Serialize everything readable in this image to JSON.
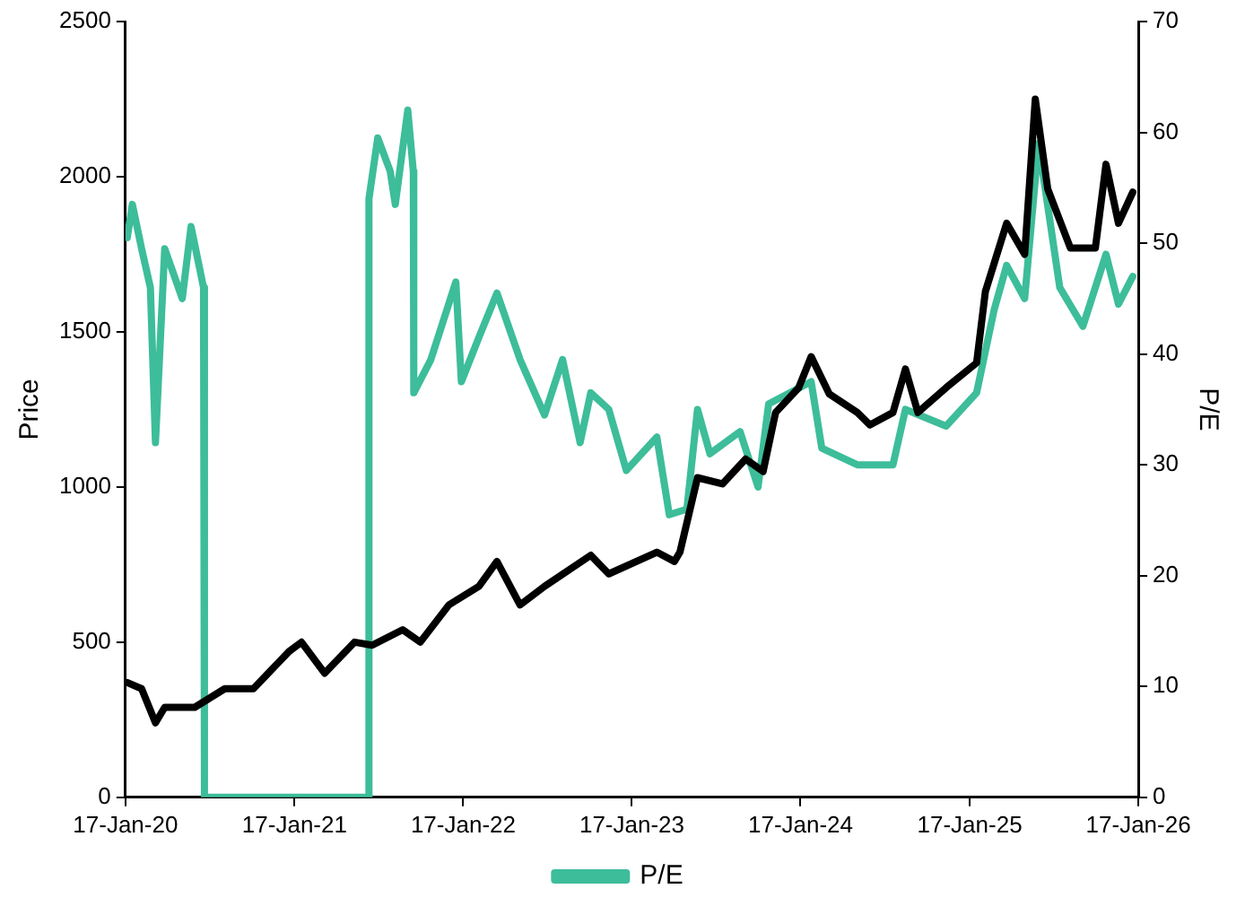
{
  "chart_data": {
    "type": "line",
    "ylabel": "Price",
    "y2label": "P/E",
    "xlim": [
      "2020-01-17",
      "2026-01-17"
    ],
    "xticks": [
      {
        "value": "2020-01-17",
        "label": "17-Jan-20"
      },
      {
        "value": "2021-01-17",
        "label": "17-Jan-21"
      },
      {
        "value": "2022-01-17",
        "label": "17-Jan-22"
      },
      {
        "value": "2023-01-17",
        "label": "17-Jan-23"
      },
      {
        "value": "2024-01-17",
        "label": "17-Jan-24"
      },
      {
        "value": "2025-01-17",
        "label": "17-Jan-25"
      },
      {
        "value": "2026-01-17",
        "label": "17-Jan-26"
      }
    ],
    "ylim": [
      0,
      2500
    ],
    "yticks": [
      0,
      500,
      1000,
      1500,
      2000,
      2500
    ],
    "y2lim": [
      0,
      70
    ],
    "y2ticks": [
      0,
      10,
      20,
      30,
      40,
      50,
      60,
      70
    ],
    "grid": false,
    "legend": "bottom",
    "marker": "none",
    "line_style": "solid",
    "series": [
      {
        "color": "#000000",
        "x": [
          "2020-01-21",
          "2020-02-21",
          "2020-03-22",
          "2020-04-11",
          "2020-06-15",
          "2020-08-19",
          "2020-10-20",
          "2021-01-05",
          "2021-02-01",
          "2021-03-23",
          "2021-05-27",
          "2021-07-04",
          "2021-09-08",
          "2021-10-16",
          "2021-12-17",
          "2022-02-20",
          "2022-03-31",
          "2022-05-20",
          "2022-07-12",
          "2022-10-20",
          "2022-11-28",
          "2023-03-12",
          "2023-04-19",
          "2023-05-01",
          "2023-06-08",
          "2023-08-01",
          "2023-09-20",
          "2023-10-28",
          "2023-11-24",
          "2024-01-13",
          "2024-02-09",
          "2024-03-19",
          "2024-05-19",
          "2024-06-15",
          "2024-08-04",
          "2024-08-31",
          "2024-09-27",
          "2024-11-27",
          "2025-02-01",
          "2025-02-20",
          "2025-04-07",
          "2025-05-16",
          "2025-06-08",
          "2025-07-05",
          "2025-08-23",
          "2025-10-16",
          "2025-11-08",
          "2025-12-05",
          "2026-01-05"
        ],
        "values": [
          370,
          350,
          240,
          290,
          290,
          350,
          350,
          470,
          500,
          400,
          500,
          490,
          540,
          500,
          620,
          680,
          760,
          620,
          680,
          780,
          720,
          790,
          760,
          790,
          1030,
          1010,
          1090,
          1050,
          1240,
          1320,
          1420,
          1300,
          1240,
          1200,
          1240,
          1380,
          1240,
          1320,
          1400,
          1630,
          1850,
          1750,
          2250,
          1960,
          1770,
          1770,
          2040,
          1850,
          1950
        ]
      },
      {
        "name": "P/E",
        "color": "#3dbd9a",
        "axis": "y2",
        "x": [
          "2020-01-21",
          "2020-02-01",
          "2020-02-21",
          "2020-03-11",
          "2020-03-22",
          "2020-04-11",
          "2020-05-19",
          "2020-06-07",
          "2020-07-04",
          "2020-07-06",
          "2021-06-25",
          "2021-06-27",
          "2021-07-16",
          "2021-08-12",
          "2021-08-23",
          "2021-09-19",
          "2021-10-01",
          "2021-10-02",
          "2021-11-08",
          "2021-12-05",
          "2022-01-01",
          "2022-01-13",
          "2022-02-20",
          "2022-03-31",
          "2022-05-20",
          "2022-07-12",
          "2022-08-20",
          "2022-09-27",
          "2022-10-20",
          "2022-11-28",
          "2023-01-05",
          "2023-03-12",
          "2023-04-08",
          "2023-05-16",
          "2023-06-08",
          "2023-07-05",
          "2023-09-08",
          "2023-10-17",
          "2023-11-09",
          "2024-02-09",
          "2024-03-03",
          "2024-05-19",
          "2024-08-04",
          "2024-08-31",
          "2024-11-27",
          "2025-02-01",
          "2025-03-11",
          "2025-04-07",
          "2025-05-16",
          "2025-06-15",
          "2025-07-31",
          "2025-09-19",
          "2025-11-08",
          "2025-12-05",
          "2026-01-05"
        ],
        "values": [
          50.5,
          53.5,
          49.5,
          46,
          32,
          49.5,
          45,
          51.5,
          46,
          0,
          0,
          54,
          59.5,
          56.5,
          53.5,
          62,
          56.5,
          36.5,
          39.5,
          43,
          46.5,
          37.5,
          41.5,
          45.5,
          39.5,
          34.5,
          39.5,
          32,
          36.5,
          35,
          29.5,
          32.5,
          25.5,
          26,
          35,
          31,
          33,
          28,
          35.5,
          37.5,
          31.5,
          30,
          30,
          35,
          33.5,
          36.5,
          44,
          48,
          45,
          59,
          46,
          42.5,
          49,
          44.5,
          47
        ]
      }
    ]
  }
}
